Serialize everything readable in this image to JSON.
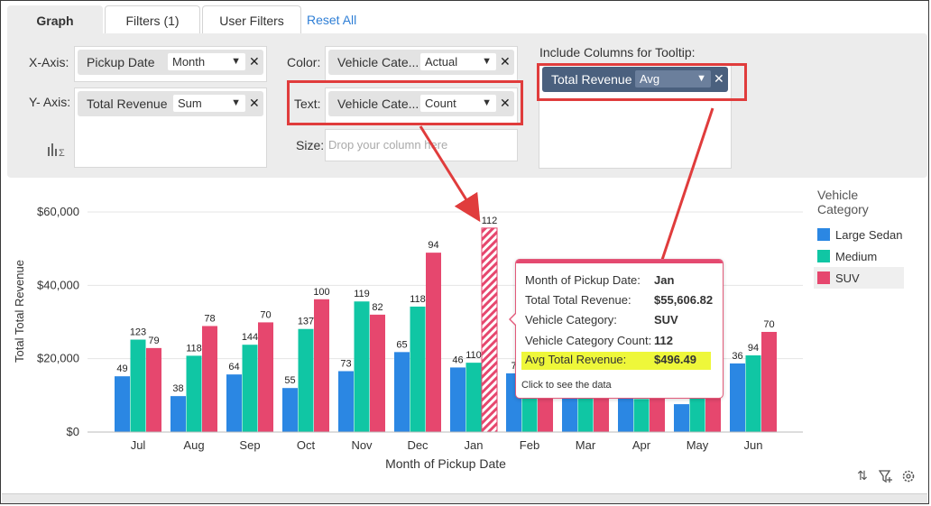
{
  "tabs": [
    {
      "label": "Graph"
    },
    {
      "label": "Filters (1)"
    },
    {
      "label": "User Filters"
    }
  ],
  "reset_label": "Reset All",
  "config": {
    "xaxis": {
      "label": "X-Axis:",
      "column": "Pickup Date",
      "agg": "Month"
    },
    "yaxis": {
      "label": "Y- Axis:",
      "column": "Total Revenue",
      "agg": "Sum"
    },
    "color": {
      "label": "Color:",
      "column": "Vehicle Cate...",
      "agg": "Actual"
    },
    "text": {
      "label": "Text:",
      "column": "Vehicle Cate...",
      "agg": "Count"
    },
    "size": {
      "label": "Size:",
      "placeholder": "Drop your column here"
    },
    "tooltip": {
      "label": "Include Columns for Tooltip:",
      "column": "Total Revenue",
      "agg": "Avg"
    }
  },
  "chart_data": {
    "type": "bar",
    "xlabel": "Month of Pickup Date",
    "ylabel": "Total Total Revenue",
    "ylim": [
      0,
      60000
    ],
    "yticks": [
      "$0",
      "$20,000",
      "$40,000",
      "$60,000"
    ],
    "ytick_values": [
      0,
      20000,
      40000,
      60000
    ],
    "categories": [
      "Jul",
      "Aug",
      "Sep",
      "Oct",
      "Nov",
      "Dec",
      "Jan",
      "Feb",
      "Mar",
      "Apr",
      "May",
      "Jun"
    ],
    "legend_title": "Vehicle Category",
    "legend_position": "right",
    "grid": true,
    "series": [
      {
        "name": "Large Sedan",
        "color": "#2b87e3",
        "values": [
          15200,
          9800,
          15700,
          12000,
          16600,
          21800,
          17600,
          16000,
          14500,
          17000,
          7600,
          18700
        ],
        "labels": [
          "49",
          "38",
          "64",
          "55",
          "73",
          "65",
          "46",
          "7",
          "",
          "",
          "",
          "36"
        ]
      },
      {
        "name": "Medium",
        "color": "#10c6a4",
        "values": [
          25200,
          20800,
          23800,
          28100,
          35600,
          34200,
          18900,
          17000,
          16000,
          9000,
          14500,
          20900
        ],
        "labels": [
          "123",
          "118",
          "144",
          "137",
          "119",
          "118",
          "110",
          "",
          "",
          "",
          "",
          "94"
        ]
      },
      {
        "name": "SUV",
        "color": "#e6476e",
        "values": [
          22900,
          28900,
          29900,
          36200,
          32000,
          48900,
          55606.82,
          17000,
          16000,
          42000,
          22000,
          27300
        ],
        "labels": [
          "79",
          "78",
          "70",
          "100",
          "82",
          "94",
          "112",
          "",
          "",
          "100",
          "57",
          "70"
        ]
      }
    ],
    "hatched_highlight": {
      "category": "Jan",
      "series": "SUV"
    }
  },
  "tooltip": {
    "rows": [
      {
        "k": "Month of Pickup Date:",
        "v": "Jan"
      },
      {
        "k": "Total Total Revenue:",
        "v": "$55,606.82"
      },
      {
        "k": "Vehicle Category:",
        "v": "SUV"
      },
      {
        "k": "Vehicle Category Count:",
        "v": "112"
      },
      {
        "k": "Avg Total Revenue:",
        "v": "$496.49"
      }
    ],
    "footer": "Click to see the data"
  },
  "icons": {
    "sort": "sort-icon",
    "filter": "filter-add-icon",
    "settings": "gear-icon",
    "chart_type": "chart-type-icon"
  }
}
